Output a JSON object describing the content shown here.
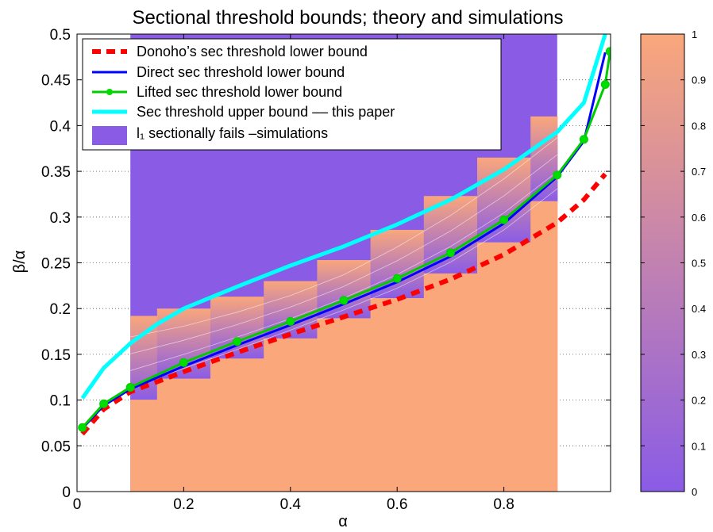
{
  "chart_data": {
    "type": "line",
    "title": "Sectional threshold bounds; theory and simulations",
    "xlabel": "α",
    "ylabel": "β/α",
    "xlim": [
      0,
      1
    ],
    "ylim": [
      0,
      0.5
    ],
    "grid": true,
    "legend_position": "top-left",
    "x_ticks": [
      0,
      0.2,
      0.4,
      0.6,
      0.8
    ],
    "x_tick_labels": [
      "0",
      "0.2",
      "0.4",
      "0.6",
      "0.8"
    ],
    "y_ticks": [
      0,
      0.05,
      0.1,
      0.15,
      0.2,
      0.25,
      0.3,
      0.35,
      0.4,
      0.45,
      0.5
    ],
    "y_tick_labels": [
      "0",
      "0.05",
      "0.1",
      "0.15",
      "0.2",
      "0.25",
      "0.3",
      "0.35",
      "0.4",
      "0.45",
      "0.5"
    ],
    "series": [
      {
        "name": "Donoho’s sec threshold lower bound",
        "style": "dashed",
        "color": "#ff0000",
        "x": [
          0.01,
          0.05,
          0.1,
          0.2,
          0.3,
          0.4,
          0.5,
          0.6,
          0.7,
          0.8,
          0.9,
          0.95,
          0.99
        ],
        "y": [
          0.063,
          0.09,
          0.109,
          0.131,
          0.152,
          0.172,
          0.191,
          0.21,
          0.232,
          0.259,
          0.294,
          0.319,
          0.347
        ]
      },
      {
        "name": "Direct sec threshold lower bound",
        "style": "solid",
        "color": "#0000ff",
        "x": [
          0.01,
          0.05,
          0.1,
          0.2,
          0.3,
          0.4,
          0.5,
          0.6,
          0.7,
          0.8,
          0.9,
          0.95,
          0.99
        ],
        "y": [
          0.069,
          0.094,
          0.112,
          0.137,
          0.16,
          0.182,
          0.205,
          0.229,
          0.257,
          0.293,
          0.344,
          0.383,
          0.48
        ]
      },
      {
        "name": "Lifted sec threshold lower bound",
        "style": "solid-markers",
        "color": "#00cc00",
        "x": [
          0.01,
          0.05,
          0.1,
          0.2,
          0.3,
          0.4,
          0.5,
          0.6,
          0.7,
          0.8,
          0.9,
          0.95,
          0.99,
          0.999
        ],
        "y": [
          0.07,
          0.096,
          0.114,
          0.141,
          0.164,
          0.186,
          0.209,
          0.233,
          0.261,
          0.297,
          0.346,
          0.385,
          0.445,
          0.481
        ]
      },
      {
        "name": "Sec threshold upper bound –– this paper",
        "style": "solid-thick",
        "color": "#00ffff",
        "x": [
          0.01,
          0.05,
          0.1,
          0.15,
          0.2,
          0.3,
          0.4,
          0.5,
          0.6,
          0.7,
          0.8,
          0.9,
          0.95,
          0.99
        ],
        "y": [
          0.102,
          0.135,
          0.162,
          0.183,
          0.2,
          0.224,
          0.247,
          0.268,
          0.292,
          0.319,
          0.352,
          0.393,
          0.425,
          0.5
        ]
      },
      {
        "name": "l₁ sectionally fails –simulations",
        "style": "patch",
        "color": "#8a5ce6"
      }
    ],
    "simulation_region": {
      "alpha_range": [
        0.1,
        0.9
      ],
      "alpha": [
        0.1,
        0.2,
        0.3,
        0.4,
        0.5,
        0.6,
        0.7,
        0.8,
        0.9
      ],
      "transition_low": [
        0.1,
        0.123,
        0.145,
        0.167,
        0.189,
        0.211,
        0.238,
        0.272,
        0.317
      ],
      "transition_high": [
        0.192,
        0.2,
        0.213,
        0.23,
        0.253,
        0.286,
        0.323,
        0.365,
        0.41
      ],
      "fail_color": "#8a5ce6",
      "success_color": "#f9a77b"
    },
    "colorbar": {
      "range": [
        0,
        1
      ],
      "ticks": [
        0,
        0.1,
        0.2,
        0.3,
        0.4,
        0.5,
        0.6,
        0.7,
        0.8,
        0.9,
        1
      ],
      "tick_labels": [
        "0",
        "0.1",
        "0.2",
        "0.3",
        "0.4",
        "0.5",
        "0.6",
        "0.7",
        "0.8",
        "0.9",
        "1"
      ],
      "color_at_0": "#8a5ce6",
      "color_at_1": "#f9a77b"
    }
  }
}
